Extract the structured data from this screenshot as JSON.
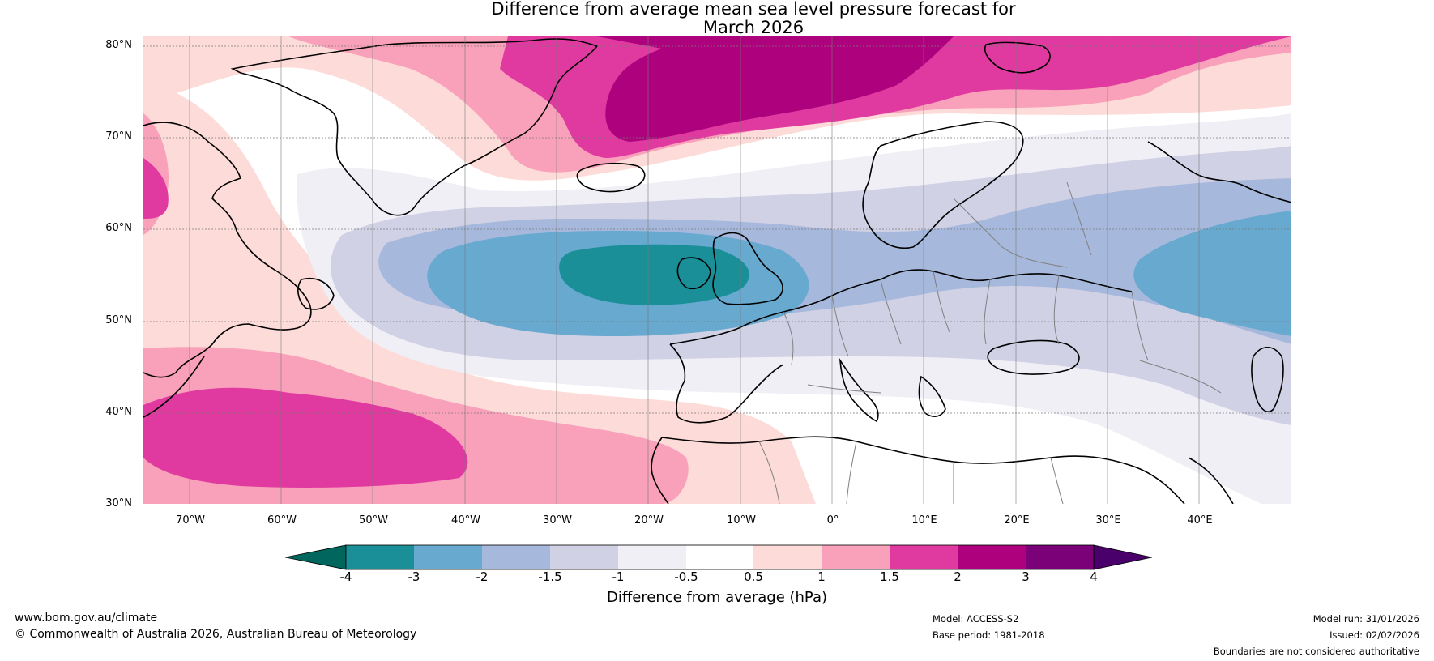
{
  "title": {
    "line1": "Difference from average mean sea level pressure forecast for",
    "line2": "March 2026"
  },
  "map": {
    "latitudes": [
      "80°N",
      "70°N",
      "60°N",
      "50°N",
      "40°N",
      "30°N"
    ],
    "longitudes": [
      "70°W",
      "60°W",
      "50°W",
      "40°W",
      "30°W",
      "20°W",
      "10°W",
      "0°",
      "10°E",
      "20°E",
      "30°E",
      "40°E"
    ],
    "colors": {
      "neg4_under": "#01665e",
      "neg4": "#1b8f98",
      "neg3": "#67a9cf",
      "neg2": "#a6b8db",
      "neg15": "#d1d1e6",
      "neg1": "#f1eff6",
      "zero": "#ffffff",
      "pos05": "#fddbd8",
      "pos1": "#f9a0ba",
      "pos15": "#e03aa0",
      "pos2": "#ae017e",
      "pos3": "#7a0177",
      "pos4_over": "#49006a"
    }
  },
  "colorbar": {
    "ticks": [
      "-4",
      "-3",
      "-2",
      "-1.5",
      "-1",
      "-0.5",
      "0.5",
      "1",
      "1.5",
      "2",
      "3",
      "4"
    ],
    "label": "Difference from average (hPa)",
    "colors": [
      "#01665e",
      "#1b8f98",
      "#67a9cf",
      "#a6b8db",
      "#d1d1e6",
      "#f1eff6",
      "#ffffff",
      "#fddbd8",
      "#f9a0ba",
      "#e03aa0",
      "#ae017e",
      "#7a0177",
      "#49006a"
    ]
  },
  "footer": {
    "website": "www.bom.gov.au/climate",
    "copyright": "© Commonwealth of Australia 2026, Australian Bureau of Meteorology",
    "model": "Model: ACCESS-S2",
    "base_period": "Base period: 1981-2018",
    "model_run": "Model run: 31/01/2026",
    "issued": "Issued: 02/02/2026",
    "boundaries": "Boundaries are not considered authoritative"
  }
}
